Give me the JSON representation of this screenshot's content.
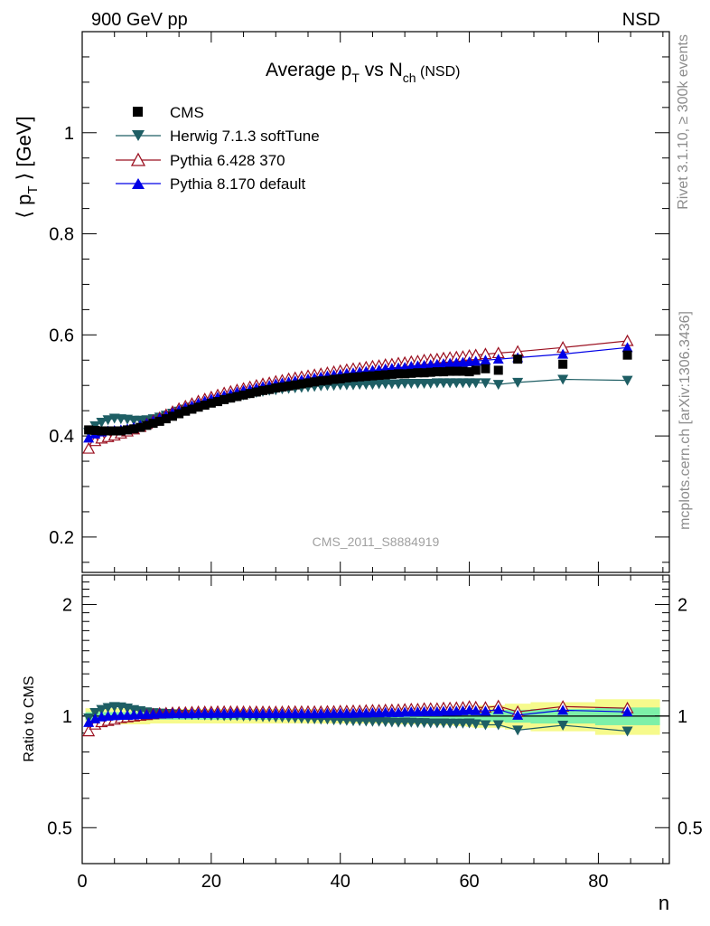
{
  "header": {
    "left": "900 GeV pp",
    "right": "NSD"
  },
  "side": {
    "top": "Rivet 3.1.10, ≥ 300k events",
    "bottom": "mcplots.cern.ch [arXiv:1306.3436]"
  },
  "chart_data": {
    "type": "scatter",
    "title": {
      "main": "Average p",
      "sub1": "T",
      "mid": " vs N",
      "sub2": "ch",
      "tail": " (NSD)"
    },
    "ylabel": {
      "pre": "⟨ p",
      "sub": "T",
      "post": " ⟩ [GeV]"
    },
    "xlabel": "n",
    "ratio_ylabel": "Ratio to CMS",
    "analysis_label": "CMS_2011_S8884919",
    "xlim": [
      0,
      91
    ],
    "ylim": [
      0.13,
      1.2
    ],
    "ratio_ylim": [
      0.4,
      2.4
    ],
    "ratio_log": true,
    "x_ticks": [
      0,
      20,
      40,
      60,
      80
    ],
    "x_tick_labels": [
      "0",
      "20",
      "40",
      "60",
      "80"
    ],
    "y_ticks": [
      0.2,
      0.4,
      0.6,
      0.8,
      1
    ],
    "y_tick_labels": [
      "0.2",
      "0.4",
      "0.6",
      "0.8",
      "1"
    ],
    "ratio_ticks": [
      0.5,
      1,
      2
    ],
    "ratio_tick_labels": [
      "0.5",
      "1",
      "2"
    ],
    "legend_position": "top-left",
    "colors": {
      "cms": "#000000",
      "herwig": "#1e5e64",
      "pythia6": "#9b1020",
      "pythia8": "#0000e6",
      "band_inner": "#7df0a8",
      "band_outer": "#f6fa8c"
    },
    "series": [
      {
        "name": "CMS",
        "marker": "square",
        "x": [
          1,
          2,
          3,
          4,
          5,
          6,
          7,
          8,
          9,
          10,
          11,
          12,
          13,
          14,
          15,
          16,
          17,
          18,
          19,
          20,
          21,
          22,
          23,
          24,
          25,
          26,
          27,
          28,
          29,
          30,
          31,
          32,
          33,
          34,
          35,
          36,
          37,
          38,
          39,
          40,
          41,
          42,
          43,
          44,
          45,
          46,
          47,
          48,
          49,
          50,
          51,
          52,
          53,
          54,
          55,
          56,
          57,
          58,
          59,
          60,
          61,
          62.5,
          64.5,
          67.5,
          74.5,
          84.5
        ],
        "y": [
          0.412,
          0.411,
          0.41,
          0.41,
          0.41,
          0.41,
          0.412,
          0.414,
          0.417,
          0.421,
          0.425,
          0.429,
          0.434,
          0.439,
          0.444,
          0.449,
          0.453,
          0.457,
          0.461,
          0.465,
          0.468,
          0.472,
          0.475,
          0.478,
          0.481,
          0.484,
          0.487,
          0.49,
          0.492,
          0.495,
          0.497,
          0.499,
          0.501,
          0.503,
          0.505,
          0.507,
          0.509,
          0.51,
          0.512,
          0.513,
          0.515,
          0.516,
          0.517,
          0.518,
          0.519,
          0.52,
          0.521,
          0.522,
          0.523,
          0.523,
          0.524,
          0.525,
          0.525,
          0.526,
          0.527,
          0.527,
          0.528,
          0.528,
          0.528,
          0.527,
          0.53,
          0.533,
          0.53,
          0.552,
          0.542,
          0.56
        ]
      },
      {
        "name": "Herwig 7.1.3 softTune",
        "marker": "triangle-down",
        "x": [
          1,
          2,
          3,
          4,
          5,
          6,
          7,
          8,
          9,
          10,
          11,
          12,
          13,
          14,
          15,
          16,
          17,
          18,
          19,
          20,
          21,
          22,
          23,
          24,
          25,
          26,
          27,
          28,
          29,
          30,
          31,
          32,
          33,
          34,
          35,
          36,
          37,
          38,
          39,
          40,
          41,
          42,
          43,
          44,
          45,
          46,
          47,
          48,
          49,
          50,
          51,
          52,
          53,
          54,
          55,
          56,
          57,
          58,
          59,
          60,
          61,
          62.5,
          64.5,
          67.5,
          74.5,
          84.5
        ],
        "y": [
          0.407,
          0.42,
          0.427,
          0.432,
          0.435,
          0.434,
          0.433,
          0.431,
          0.431,
          0.432,
          0.434,
          0.437,
          0.441,
          0.445,
          0.449,
          0.453,
          0.457,
          0.461,
          0.464,
          0.467,
          0.47,
          0.473,
          0.476,
          0.479,
          0.481,
          0.484,
          0.486,
          0.488,
          0.49,
          0.491,
          0.493,
          0.494,
          0.495,
          0.496,
          0.497,
          0.498,
          0.499,
          0.5,
          0.5,
          0.501,
          0.501,
          0.501,
          0.502,
          0.502,
          0.502,
          0.503,
          0.503,
          0.503,
          0.503,
          0.504,
          0.504,
          0.504,
          0.504,
          0.504,
          0.505,
          0.505,
          0.505,
          0.505,
          0.505,
          0.505,
          0.505,
          0.505,
          0.502,
          0.506,
          0.512,
          0.51
        ]
      },
      {
        "name": "Pythia 6.428 370",
        "marker": "triangle-up-open",
        "x": [
          1,
          2,
          3,
          4,
          5,
          6,
          7,
          8,
          9,
          10,
          11,
          12,
          13,
          14,
          15,
          16,
          17,
          18,
          19,
          20,
          21,
          22,
          23,
          24,
          25,
          26,
          27,
          28,
          29,
          30,
          31,
          32,
          33,
          34,
          35,
          36,
          37,
          38,
          39,
          40,
          41,
          42,
          43,
          44,
          45,
          46,
          47,
          48,
          49,
          50,
          51,
          52,
          53,
          54,
          55,
          56,
          57,
          58,
          59,
          60,
          61,
          62.5,
          64.5,
          67.5,
          74.5,
          84.5
        ],
        "y": [
          0.375,
          0.39,
          0.395,
          0.398,
          0.401,
          0.405,
          0.409,
          0.413,
          0.418,
          0.424,
          0.43,
          0.436,
          0.442,
          0.448,
          0.454,
          0.459,
          0.464,
          0.469,
          0.473,
          0.477,
          0.481,
          0.485,
          0.488,
          0.491,
          0.494,
          0.497,
          0.5,
          0.503,
          0.505,
          0.508,
          0.51,
          0.513,
          0.515,
          0.517,
          0.519,
          0.521,
          0.523,
          0.525,
          0.527,
          0.529,
          0.531,
          0.533,
          0.534,
          0.536,
          0.538,
          0.539,
          0.541,
          0.542,
          0.544,
          0.545,
          0.547,
          0.548,
          0.55,
          0.551,
          0.552,
          0.554,
          0.555,
          0.556,
          0.557,
          0.559,
          0.56,
          0.562,
          0.564,
          0.567,
          0.575,
          0.588
        ]
      },
      {
        "name": "Pythia 8.170 default",
        "marker": "triangle-up",
        "x": [
          1,
          2,
          3,
          4,
          5,
          6,
          7,
          8,
          9,
          10,
          11,
          12,
          13,
          14,
          15,
          16,
          17,
          18,
          19,
          20,
          21,
          22,
          23,
          24,
          25,
          26,
          27,
          28,
          29,
          30,
          31,
          32,
          33,
          34,
          35,
          36,
          37,
          38,
          39,
          40,
          41,
          42,
          43,
          44,
          45,
          46,
          47,
          48,
          49,
          50,
          51,
          52,
          53,
          54,
          55,
          56,
          57,
          58,
          59,
          60,
          61,
          62.5,
          64.5,
          67.5,
          74.5,
          84.5
        ],
        "y": [
          0.396,
          0.404,
          0.408,
          0.41,
          0.411,
          0.412,
          0.414,
          0.417,
          0.421,
          0.425,
          0.43,
          0.435,
          0.44,
          0.446,
          0.451,
          0.456,
          0.46,
          0.465,
          0.469,
          0.473,
          0.477,
          0.48,
          0.483,
          0.487,
          0.49,
          0.492,
          0.495,
          0.498,
          0.5,
          0.503,
          0.505,
          0.507,
          0.509,
          0.511,
          0.513,
          0.515,
          0.517,
          0.519,
          0.521,
          0.522,
          0.524,
          0.525,
          0.527,
          0.528,
          0.53,
          0.531,
          0.533,
          0.534,
          0.535,
          0.536,
          0.538,
          0.539,
          0.54,
          0.541,
          0.542,
          0.543,
          0.544,
          0.545,
          0.546,
          0.547,
          0.548,
          0.55,
          0.552,
          0.555,
          0.562,
          0.575
        ]
      }
    ],
    "ratio_band": {
      "x_edges": [
        0.5,
        1.5,
        2.5,
        3.5,
        4.5,
        5.5,
        6.5,
        7.5,
        8.5,
        9.5,
        10.5,
        11.5,
        12.5,
        13.5,
        14.5,
        15.5,
        16.5,
        17.5,
        18.5,
        19.5,
        20.5,
        21.5,
        22.5,
        23.5,
        24.5,
        25.5,
        26.5,
        27.5,
        28.5,
        29.5,
        30.5,
        31.5,
        32.5,
        33.5,
        34.5,
        35.5,
        36.5,
        37.5,
        38.5,
        39.5,
        40.5,
        41.5,
        42.5,
        43.5,
        44.5,
        45.5,
        46.5,
        47.5,
        48.5,
        49.5,
        50.5,
        51.5,
        52.5,
        53.5,
        54.5,
        55.5,
        56.5,
        57.5,
        58.5,
        59.5,
        60.5,
        61.5,
        63.5,
        65.5,
        69.5,
        79.5,
        89.5
      ],
      "inner": [
        0.025,
        0.025,
        0.025,
        0.025,
        0.025,
        0.025,
        0.025,
        0.025,
        0.025,
        0.025,
        0.022,
        0.022,
        0.022,
        0.022,
        0.022,
        0.022,
        0.022,
        0.022,
        0.022,
        0.022,
        0.022,
        0.022,
        0.022,
        0.022,
        0.022,
        0.022,
        0.022,
        0.022,
        0.022,
        0.022,
        0.022,
        0.022,
        0.022,
        0.022,
        0.022,
        0.022,
        0.022,
        0.022,
        0.022,
        0.022,
        0.022,
        0.022,
        0.022,
        0.022,
        0.022,
        0.022,
        0.022,
        0.022,
        0.025,
        0.025,
        0.025,
        0.025,
        0.025,
        0.025,
        0.028,
        0.028,
        0.028,
        0.03,
        0.03,
        0.032,
        0.035,
        0.035,
        0.035,
        0.04,
        0.045,
        0.055
      ],
      "outer": [
        0.05,
        0.05,
        0.05,
        0.05,
        0.05,
        0.05,
        0.05,
        0.05,
        0.05,
        0.05,
        0.045,
        0.045,
        0.045,
        0.045,
        0.045,
        0.045,
        0.045,
        0.045,
        0.045,
        0.045,
        0.045,
        0.045,
        0.045,
        0.045,
        0.045,
        0.045,
        0.045,
        0.045,
        0.045,
        0.045,
        0.045,
        0.045,
        0.045,
        0.045,
        0.045,
        0.045,
        0.045,
        0.045,
        0.045,
        0.045,
        0.045,
        0.045,
        0.045,
        0.045,
        0.045,
        0.045,
        0.045,
        0.045,
        0.05,
        0.05,
        0.05,
        0.05,
        0.05,
        0.05,
        0.055,
        0.055,
        0.055,
        0.06,
        0.06,
        0.065,
        0.07,
        0.07,
        0.07,
        0.08,
        0.09,
        0.11
      ]
    }
  }
}
